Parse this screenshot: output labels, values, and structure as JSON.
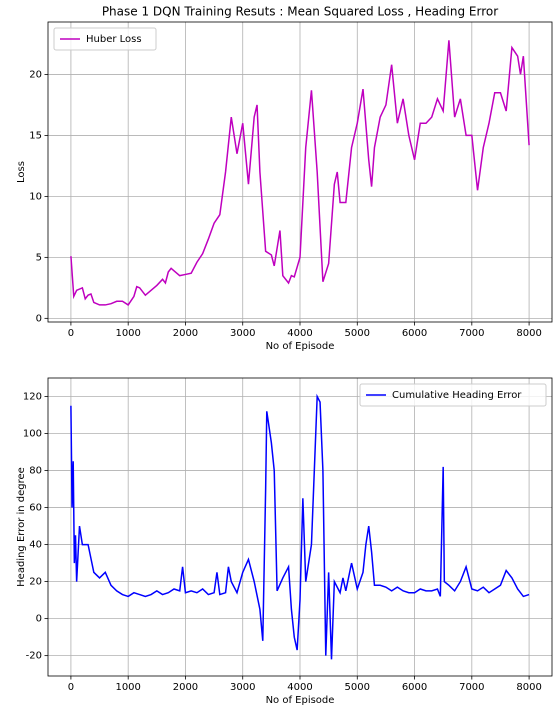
{
  "chart_data": [
    {
      "type": "line",
      "title": "Phase 1 DQN Training Resuts : Mean Squared Loss , Heading Error",
      "xlabel": "No of Episode",
      "ylabel": "Loss",
      "legend": "upper left",
      "grid": true,
      "xlim": [
        -400,
        8400
      ],
      "xticks": [
        0,
        1000,
        2000,
        3000,
        4000,
        5000,
        6000,
        7000,
        8000
      ],
      "ylim": [
        -0.3,
        24.3
      ],
      "yticks": [
        0,
        5,
        10,
        15,
        20
      ],
      "x": [
        0,
        50,
        100,
        200,
        250,
        300,
        350,
        400,
        500,
        600,
        700,
        800,
        900,
        1000,
        1100,
        1150,
        1200,
        1300,
        1400,
        1500,
        1600,
        1650,
        1700,
        1750,
        1800,
        1900,
        2000,
        2100,
        2200,
        2300,
        2400,
        2500,
        2600,
        2700,
        2800,
        2900,
        3000,
        3100,
        3200,
        3250,
        3300,
        3400,
        3500,
        3550,
        3650,
        3700,
        3800,
        3850,
        3900,
        4000,
        4100,
        4200,
        4300,
        4400,
        4500,
        4600,
        4650,
        4700,
        4800,
        4900,
        5000,
        5100,
        5200,
        5250,
        5300,
        5400,
        5500,
        5600,
        5700,
        5800,
        5900,
        6000,
        6100,
        6200,
        6300,
        6400,
        6500,
        6600,
        6700,
        6800,
        6900,
        7000,
        7100,
        7200,
        7300,
        7400,
        7500,
        7600,
        7700,
        7800,
        7850,
        7900,
        8000
      ],
      "series": [
        {
          "name": "Huber Loss",
          "color": "#bf00bf",
          "values": [
            5.1,
            1.8,
            2.3,
            2.5,
            1.6,
            1.9,
            2.0,
            1.3,
            1.1,
            1.1,
            1.2,
            1.4,
            1.4,
            1.1,
            1.8,
            2.6,
            2.5,
            1.9,
            2.3,
            2.7,
            3.2,
            2.9,
            3.8,
            4.1,
            3.9,
            3.5,
            3.6,
            3.7,
            4.6,
            5.3,
            6.5,
            7.8,
            8.5,
            12,
            16.5,
            13.5,
            16,
            11,
            16.5,
            17.5,
            12,
            5.5,
            5.2,
            4.3,
            7.2,
            3.5,
            2.9,
            3.5,
            3.4,
            5,
            14,
            18.7,
            12,
            3,
            4.5,
            11,
            12,
            9.5,
            9.5,
            14,
            16,
            18.8,
            13,
            10.8,
            14,
            16.5,
            17.5,
            20.8,
            16,
            18,
            15,
            13,
            16,
            16,
            16.5,
            18,
            17,
            22.8,
            16.5,
            18,
            15,
            15,
            10.5,
            14,
            16,
            18.5,
            18.5,
            17,
            22.2,
            21.5,
            20,
            21.5,
            14.2
          ]
        }
      ]
    },
    {
      "type": "line",
      "xlabel": "No of Episode",
      "ylabel": "Heading Error in degree",
      "legend": "upper right",
      "grid": true,
      "xlim": [
        -400,
        8400
      ],
      "xticks": [
        0,
        1000,
        2000,
        3000,
        4000,
        5000,
        6000,
        7000,
        8000
      ],
      "ylim": [
        -31,
        130
      ],
      "yticks": [
        -20,
        0,
        20,
        40,
        60,
        80,
        100,
        120
      ],
      "x": [
        0,
        20,
        40,
        60,
        80,
        100,
        150,
        200,
        300,
        400,
        500,
        600,
        700,
        800,
        900,
        1000,
        1100,
        1200,
        1300,
        1400,
        1500,
        1600,
        1700,
        1800,
        1900,
        1950,
        2000,
        2100,
        2200,
        2300,
        2400,
        2500,
        2550,
        2600,
        2700,
        2750,
        2800,
        2900,
        3000,
        3100,
        3200,
        3300,
        3350,
        3400,
        3420,
        3500,
        3550,
        3600,
        3700,
        3800,
        3850,
        3900,
        3950,
        4000,
        4050,
        4100,
        4200,
        4300,
        4350,
        4400,
        4450,
        4500,
        4550,
        4600,
        4700,
        4750,
        4800,
        4900,
        5000,
        5100,
        5150,
        5200,
        5250,
        5300,
        5400,
        5500,
        5600,
        5700,
        5800,
        5900,
        6000,
        6100,
        6200,
        6300,
        6400,
        6450,
        6500,
        6520,
        6600,
        6700,
        6800,
        6900,
        7000,
        7100,
        7200,
        7300,
        7400,
        7500,
        7600,
        7700,
        7800,
        7900,
        8000
      ],
      "series": [
        {
          "name": "Cumulative Heading Error",
          "color": "#0000ff",
          "values": [
            115,
            60,
            85,
            30,
            45,
            20,
            50,
            40,
            40,
            25,
            22,
            25,
            18,
            15,
            13,
            12,
            14,
            13,
            12,
            13,
            15,
            13,
            14,
            16,
            15,
            28,
            14,
            15,
            14,
            16,
            13,
            14,
            25,
            13,
            14,
            28,
            20,
            14,
            25,
            32,
            20,
            5,
            -12,
            70,
            112,
            95,
            80,
            15,
            22,
            28,
            5,
            -10,
            -17,
            10,
            65,
            20,
            40,
            120,
            117,
            80,
            -20,
            25,
            -22,
            20,
            14,
            22,
            15,
            30,
            16,
            25,
            40,
            50,
            36,
            18,
            18,
            17,
            15,
            17,
            15,
            14,
            14,
            16,
            15,
            15,
            16,
            12,
            82,
            20,
            18,
            15,
            20,
            28,
            16,
            15,
            17,
            14,
            16,
            18,
            26,
            22,
            16,
            12,
            13
          ]
        }
      ]
    }
  ]
}
